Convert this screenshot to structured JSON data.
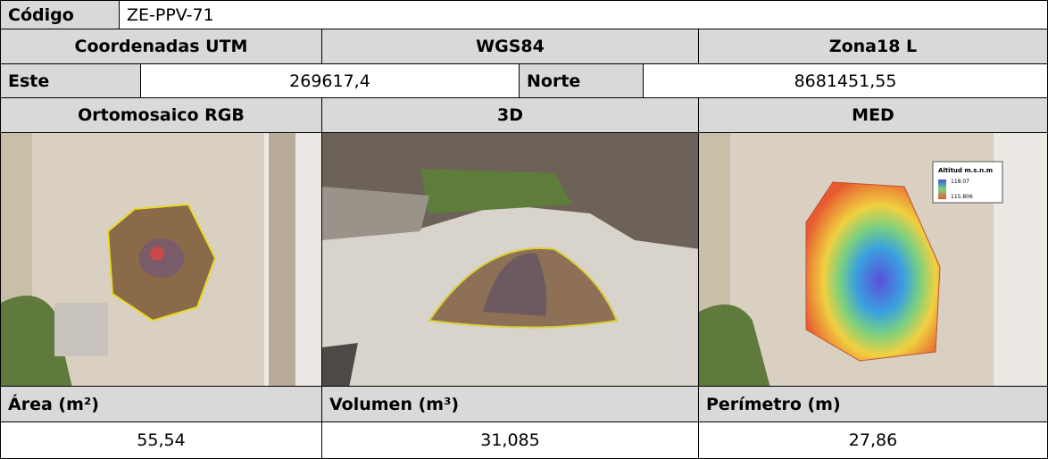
{
  "header": {
    "code_label": "Código",
    "code": "ZE-PPV-71"
  },
  "coordinates": {
    "system_label": "Coordenadas UTM",
    "datum": "WGS84",
    "zone": "Zona18 L",
    "east_label": "Este",
    "east": "269617,4",
    "north_label": "Norte",
    "north": "8681451,55"
  },
  "images": {
    "orthomosaic": "Ortomosaico RGB",
    "model_3d": "3D",
    "dem": "MED",
    "dem_legend": {
      "title": "Altitud m.s.n.m",
      "max": "118.07",
      "min": "115.806"
    }
  },
  "metrics": {
    "area_label": "Área (m²)",
    "volume_label": "Volumen (m³)",
    "perimeter_label": "Perímetro (m)",
    "area": "55,54",
    "volume": "31,085",
    "perimeter": "27,86"
  }
}
